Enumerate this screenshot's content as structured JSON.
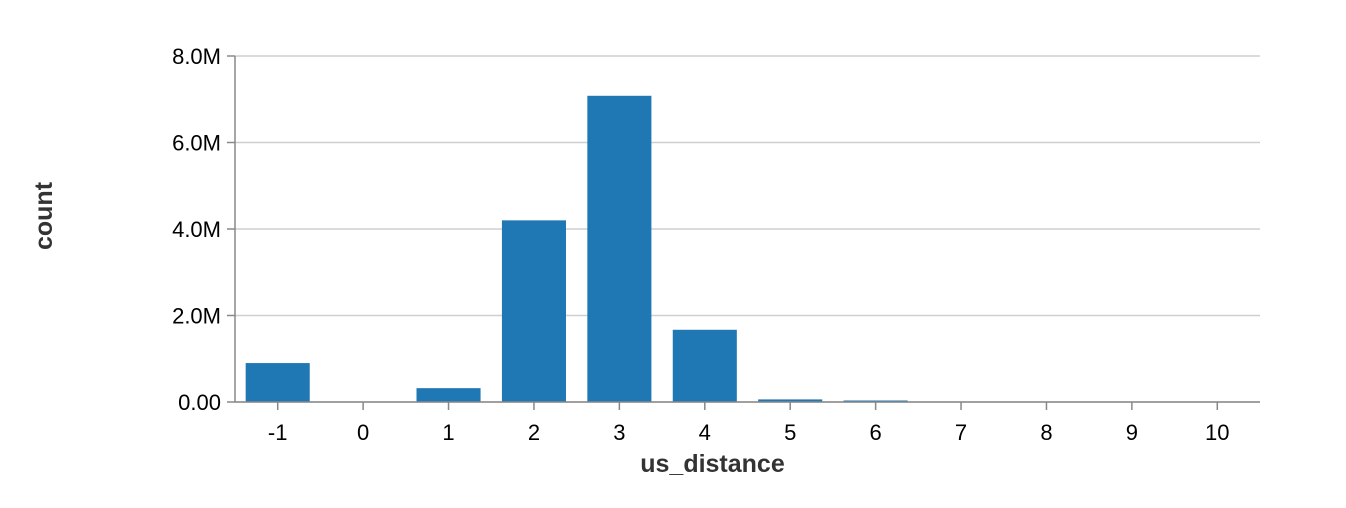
{
  "chart_data": {
    "type": "bar",
    "xlabel": "us_distance",
    "ylabel": "count",
    "categories": [
      "-1",
      "0",
      "1",
      "2",
      "3",
      "4",
      "5",
      "6",
      "7",
      "8",
      "9",
      "10"
    ],
    "values": [
      900000,
      0,
      320000,
      4200000,
      7080000,
      1670000,
      60000,
      8000,
      0,
      0,
      0,
      0
    ],
    "ylim": [
      0,
      8000000
    ],
    "yticks": [
      {
        "value": 0,
        "label": "0.00"
      },
      {
        "value": 2000000,
        "label": "2.0M"
      },
      {
        "value": 4000000,
        "label": "4.0M"
      },
      {
        "value": 6000000,
        "label": "6.0M"
      },
      {
        "value": 8000000,
        "label": "8.0M"
      }
    ],
    "grid": true,
    "bar_color": "#1f77b4"
  }
}
